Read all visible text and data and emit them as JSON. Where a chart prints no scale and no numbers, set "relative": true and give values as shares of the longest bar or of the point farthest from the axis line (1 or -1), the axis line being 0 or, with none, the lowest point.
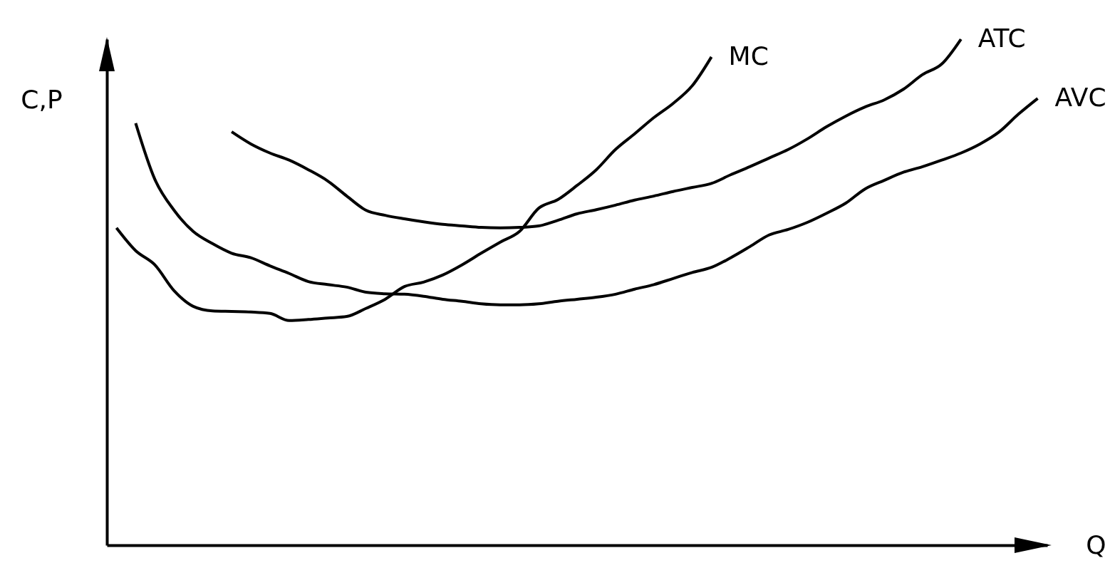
{
  "chart_data": {
    "type": "line",
    "relative": true,
    "xlabel": "Q",
    "ylabel": "C,P",
    "categories": [
      null,
      null,
      null,
      null,
      null,
      null,
      null,
      null,
      null,
      null,
      null,
      null,
      null,
      null,
      null,
      null,
      null,
      null,
      null,
      null,
      null,
      null,
      null,
      null,
      null,
      null,
      null,
      null,
      null,
      null,
      null,
      null,
      null,
      null,
      null,
      null,
      null,
      null,
      null,
      null,
      null,
      null,
      null,
      null,
      null,
      null,
      null,
      null,
      null
    ],
    "series": [
      {
        "name": "MC",
        "color": "#000000",
        "values": [
          0.627,
          0.582,
          0.554,
          0.503,
          0.472,
          0.463,
          0.462,
          0.461,
          0.458,
          0.444,
          0.446,
          0.449,
          0.452,
          0.468,
          0.486,
          0.511,
          0.52,
          0.534,
          0.554,
          0.577,
          0.599,
          0.62,
          0.666,
          0.683,
          0.711,
          0.742,
          0.782,
          0.813,
          0.845,
          0.873,
          0.908,
          0.965,
          null,
          null,
          null,
          null,
          null,
          null,
          null,
          null,
          null,
          null,
          null,
          null,
          null,
          null,
          null,
          null,
          null
        ]
      },
      {
        "name": "ATC",
        "color": "#000000",
        "values": [
          null,
          null,
          null,
          null,
          null,
          null,
          0.817,
          0.793,
          0.775,
          0.761,
          0.742,
          0.72,
          0.69,
          0.662,
          0.652,
          0.645,
          0.639,
          0.634,
          0.631,
          0.628,
          0.627,
          0.628,
          0.631,
          0.642,
          0.655,
          0.663,
          0.672,
          0.682,
          0.69,
          0.699,
          0.707,
          0.715,
          0.732,
          0.748,
          0.765,
          0.782,
          0.803,
          0.827,
          0.848,
          0.866,
          0.88,
          0.901,
          0.93,
          0.951,
          1,
          null,
          null,
          null,
          null
        ]
      },
      {
        "name": "AVC",
        "color": "#000000",
        "values": [
          null,
          0.834,
          0.723,
          0.662,
          0.62,
          0.596,
          0.577,
          0.568,
          0.552,
          0.537,
          0.521,
          0.515,
          0.51,
          0.5,
          0.497,
          0.496,
          0.492,
          0.486,
          0.482,
          0.477,
          0.475,
          0.475,
          0.477,
          0.482,
          0.486,
          0.49,
          0.496,
          0.506,
          0.515,
          0.527,
          0.539,
          0.549,
          0.568,
          0.59,
          0.613,
          0.624,
          0.638,
          0.656,
          0.676,
          0.704,
          0.721,
          0.737,
          0.748,
          0.761,
          0.775,
          0.793,
          0.817,
          0.852,
          0.883
        ]
      }
    ]
  }
}
